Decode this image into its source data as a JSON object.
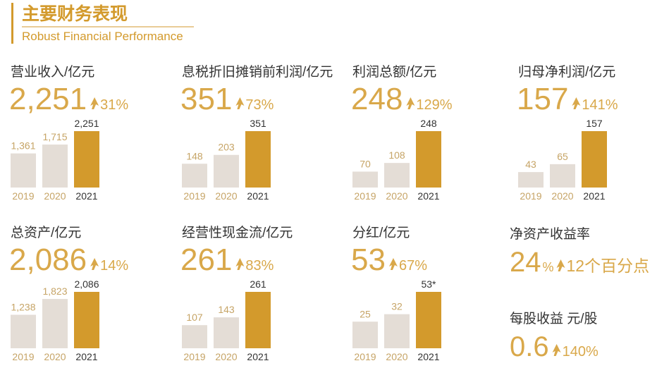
{
  "header": {
    "title": "主要财务表现",
    "subtitle": "Robust Financial Performance"
  },
  "chart_data": [
    {
      "type": "bar",
      "title": "营业收入/亿元",
      "headline": "2,251",
      "change": "31%",
      "categories": [
        "2019",
        "2020",
        "2021"
      ],
      "values": [
        1361,
        1715,
        2251
      ],
      "value_labels": [
        "1,361",
        "1,715",
        "2,251"
      ],
      "colors": [
        "#e4ddd6",
        "#e4ddd6",
        "#d39a2c"
      ],
      "label_colors": [
        "#c6a466",
        "#c6a466",
        "#333333"
      ],
      "ylim": [
        0,
        2251
      ]
    },
    {
      "type": "bar",
      "title": "息税折旧摊销前利润/亿元",
      "headline": "351",
      "change": "73%",
      "categories": [
        "2019",
        "2020",
        "2021"
      ],
      "values": [
        148,
        203,
        351
      ],
      "value_labels": [
        "148",
        "203",
        "351"
      ],
      "colors": [
        "#e4ddd6",
        "#e4ddd6",
        "#d39a2c"
      ],
      "label_colors": [
        "#c6a466",
        "#c6a466",
        "#333333"
      ],
      "ylim": [
        0,
        351
      ]
    },
    {
      "type": "bar",
      "title": "利润总额/亿元",
      "headline": "248",
      "change": "129%",
      "categories": [
        "2019",
        "2020",
        "2021"
      ],
      "values": [
        70,
        108,
        248
      ],
      "value_labels": [
        "70",
        "108",
        "248"
      ],
      "colors": [
        "#e4ddd6",
        "#e4ddd6",
        "#d39a2c"
      ],
      "label_colors": [
        "#c6a466",
        "#c6a466",
        "#333333"
      ],
      "ylim": [
        0,
        248
      ]
    },
    {
      "type": "bar",
      "title": "归母净利润/亿元",
      "headline": "157",
      "change": "141%",
      "categories": [
        "2019",
        "2020",
        "2021"
      ],
      "values": [
        43,
        65,
        157
      ],
      "value_labels": [
        "43",
        "65",
        "157"
      ],
      "colors": [
        "#e4ddd6",
        "#e4ddd6",
        "#d39a2c"
      ],
      "label_colors": [
        "#c6a466",
        "#c6a466",
        "#333333"
      ],
      "ylim": [
        0,
        157
      ]
    },
    {
      "type": "bar",
      "title": "总资产/亿元",
      "headline": "2,086",
      "change": "14%",
      "categories": [
        "2019",
        "2020",
        "2021"
      ],
      "values": [
        1238,
        1823,
        2086
      ],
      "value_labels": [
        "1,238",
        "1,823",
        "2,086"
      ],
      "colors": [
        "#e4ddd6",
        "#e4ddd6",
        "#d39a2c"
      ],
      "label_colors": [
        "#c6a466",
        "#c6a466",
        "#333333"
      ],
      "ylim": [
        0,
        2086
      ]
    },
    {
      "type": "bar",
      "title": "经营性现金流/亿元",
      "headline": "261",
      "change": "83%",
      "categories": [
        "2019",
        "2020",
        "2021"
      ],
      "values": [
        107,
        143,
        261
      ],
      "value_labels": [
        "107",
        "143",
        "261"
      ],
      "colors": [
        "#e4ddd6",
        "#e4ddd6",
        "#d39a2c"
      ],
      "label_colors": [
        "#c6a466",
        "#c6a466",
        "#333333"
      ],
      "ylim": [
        0,
        261
      ]
    },
    {
      "type": "bar",
      "title": "分红/亿元",
      "headline": "53",
      "change": "67%",
      "categories": [
        "2019",
        "2020",
        "2021"
      ],
      "values": [
        25,
        32,
        53
      ],
      "value_labels": [
        "25",
        "32",
        "53*"
      ],
      "colors": [
        "#e4ddd6",
        "#e4ddd6",
        "#d39a2c"
      ],
      "label_colors": [
        "#c6a466",
        "#c6a466",
        "#333333"
      ],
      "ylim": [
        0,
        53
      ]
    }
  ],
  "metrics": [
    {
      "title": "净资产收益率",
      "headline": "24",
      "unit": "%",
      "change": "12个百分点"
    },
    {
      "title": "每股收益 元/股",
      "headline": "0.6",
      "change": "140%"
    }
  ]
}
